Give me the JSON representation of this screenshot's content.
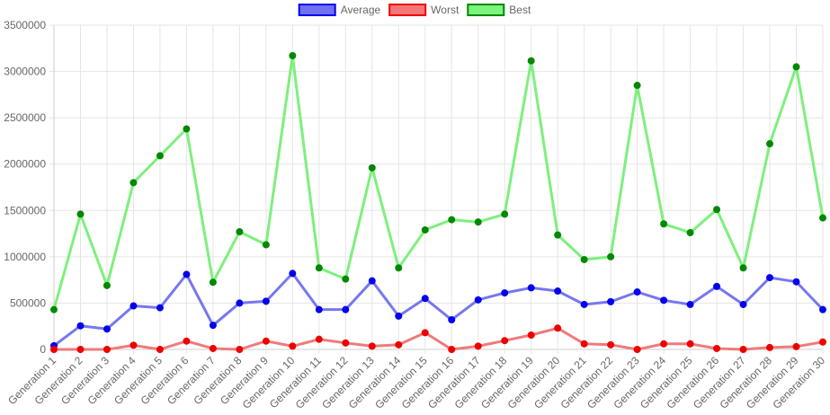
{
  "chart_data": {
    "type": "line",
    "categories": [
      "Generation 1",
      "Generation 2",
      "Generation 3",
      "Generation 4",
      "Generation 5",
      "Generation 6",
      "Generation 7",
      "Generation 8",
      "Generation 9",
      "Generation 10",
      "Generation 11",
      "Generation 12",
      "Generation 13",
      "Generation 14",
      "Generation 15",
      "Generation 16",
      "Generation 17",
      "Generation 18",
      "Generation 19",
      "Generation 20",
      "Generation 21",
      "Generation 22",
      "Generation 23",
      "Generation 24",
      "Generation 25",
      "Generation 26",
      "Generation 27",
      "Generation 28",
      "Generation 29",
      "Generation 30"
    ],
    "series": [
      {
        "name": "Average",
        "line_color": "#7777ee",
        "fill_color": "#7070f0",
        "point_color": "#0000ee",
        "values": [
          40000,
          255000,
          220000,
          470000,
          450000,
          810000,
          260000,
          500000,
          520000,
          820000,
          430000,
          430000,
          740000,
          360000,
          550000,
          320000,
          535000,
          610000,
          665000,
          630000,
          485000,
          515000,
          620000,
          530000,
          485000,
          680000,
          485000,
          775000,
          730000,
          430000
        ]
      },
      {
        "name": "Worst",
        "line_color": "#f07a7a",
        "fill_color": "#f47777",
        "point_color": "#ee0000",
        "values": [
          0,
          0,
          0,
          45000,
          0,
          90000,
          10000,
          0,
          90000,
          35000,
          110000,
          70000,
          35000,
          50000,
          180000,
          0,
          35000,
          95000,
          155000,
          230000,
          60000,
          50000,
          0,
          60000,
          60000,
          10000,
          0,
          20000,
          30000,
          80000
        ]
      },
      {
        "name": "Best",
        "line_color": "#7df07d",
        "fill_color": "#7cf57c",
        "point_color": "#008800",
        "values": [
          430000,
          1460000,
          690000,
          1800000,
          2090000,
          2380000,
          725000,
          1270000,
          1130000,
          3170000,
          880000,
          760000,
          1960000,
          880000,
          1290000,
          1400000,
          1375000,
          1460000,
          3115000,
          1235000,
          970000,
          1000000,
          2850000,
          1355000,
          1260000,
          1510000,
          880000,
          2220000,
          3050000,
          1420000
        ]
      }
    ],
    "ylim": [
      0,
      3500000
    ],
    "yticks": [
      "0",
      "500000",
      "1000000",
      "1500000",
      "2000000",
      "2500000",
      "3000000",
      "3500000"
    ],
    "grid": true,
    "legend_position": "top-center",
    "title": "",
    "xlabel": "",
    "ylabel": "",
    "grid_color": "#e5e5e5",
    "axis_color": "#cccccc",
    "text_color": "#666666"
  }
}
